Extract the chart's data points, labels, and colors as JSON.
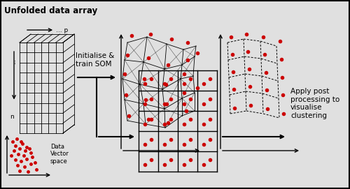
{
  "bg_color": "#e0e0e0",
  "text_color": "#000000",
  "red_color": "#cc0000",
  "title_text": "Unfolded data array",
  "init_train_text": "Initialise &\ntrain SOM",
  "apply_post_text": "Apply post\nprocessing to\nvisualise\nclustering",
  "data_vector_text": "Data\nVector\nspace",
  "p_label": "... p",
  "n_label": "n"
}
